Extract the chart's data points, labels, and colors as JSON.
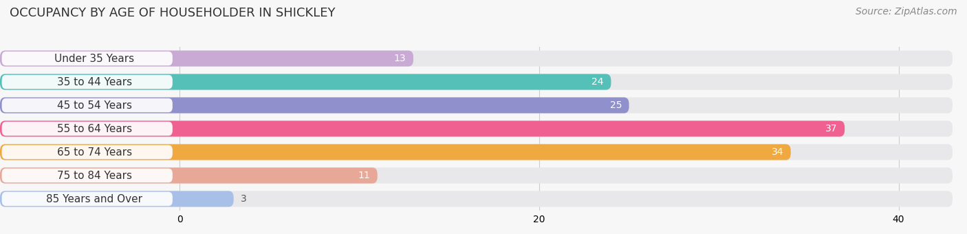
{
  "title": "OCCUPANCY BY AGE OF HOUSEHOLDER IN SHICKLEY",
  "source": "Source: ZipAtlas.com",
  "categories": [
    "Under 35 Years",
    "35 to 44 Years",
    "45 to 54 Years",
    "55 to 64 Years",
    "65 to 74 Years",
    "75 to 84 Years",
    "85 Years and Over"
  ],
  "values": [
    13,
    24,
    25,
    37,
    34,
    11,
    3
  ],
  "bar_colors": [
    "#c9aad4",
    "#54c0b8",
    "#9090cc",
    "#f06090",
    "#f0a840",
    "#e8a898",
    "#a8c0e8"
  ],
  "bar_bg_color": "#e8e8ea",
  "bg_color": "#f7f7f7",
  "xlim_data": 40,
  "data_max": 40,
  "xticks": [
    0,
    20,
    40
  ],
  "title_fontsize": 13,
  "source_fontsize": 10,
  "label_fontsize": 11,
  "value_fontsize": 10,
  "bar_height": 0.68,
  "bar_gap": 0.32
}
